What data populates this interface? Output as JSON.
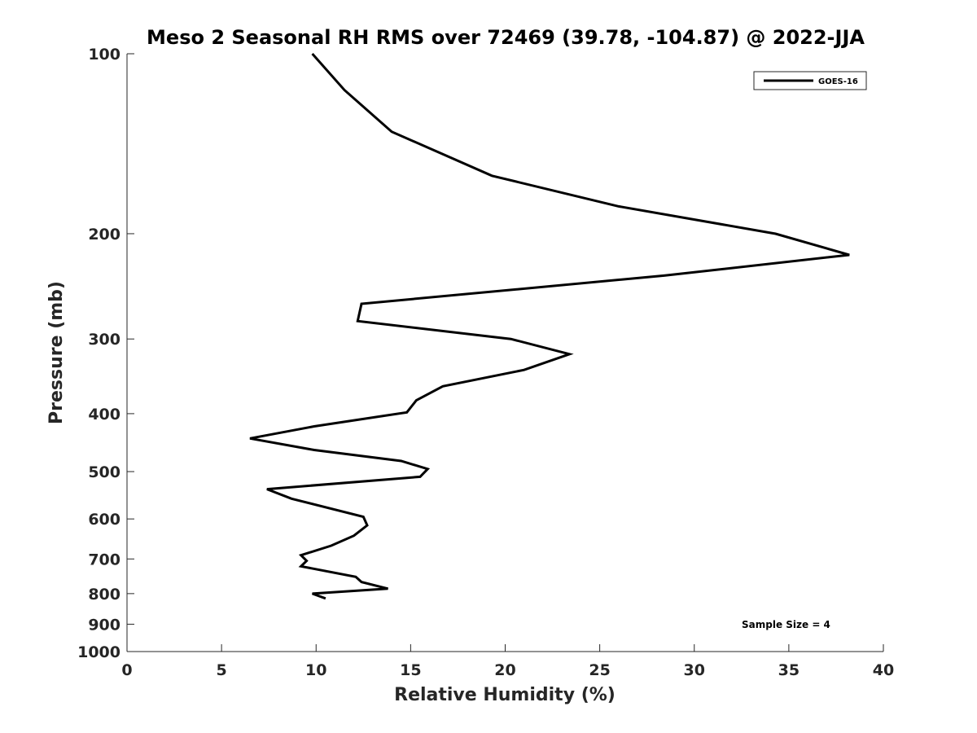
{
  "chart_data": {
    "type": "line",
    "title": "Meso 2 Seasonal RH RMS over 72469 (39.78, -104.87) @ 2022-JJA",
    "xlabel": "Relative Humidity (%)",
    "ylabel": "Pressure (mb)",
    "xlim": [
      0,
      40
    ],
    "ylim": [
      100,
      1000
    ],
    "yscale": "log",
    "y_reversed": true,
    "xticks": [
      0,
      5,
      10,
      15,
      20,
      25,
      30,
      35,
      40
    ],
    "yticks": [
      100,
      200,
      300,
      400,
      500,
      600,
      700,
      800,
      900,
      1000
    ],
    "grid": false,
    "legend_position": "top-right",
    "annotation": "Sample Size = 4",
    "series": [
      {
        "name": "GOES-16",
        "color": "#000000",
        "x": [
          9.8,
          11.5,
          14.0,
          19.3,
          26.0,
          34.3,
          38.2,
          28.4,
          12.4,
          12.2,
          20.3,
          23.4,
          21.0,
          16.7,
          15.3,
          14.8,
          9.9,
          6.5,
          9.9,
          14.5,
          15.9,
          15.5,
          7.4,
          8.7,
          12.5,
          12.7,
          12.0,
          10.8,
          9.2,
          9.5,
          9.2,
          12.1,
          12.4,
          13.8,
          9.8,
          10.5
        ],
        "y": [
          100,
          115,
          135,
          160,
          180,
          200,
          217,
          235,
          262,
          280,
          300,
          318,
          338,
          360,
          380,
          398,
          420,
          440,
          460,
          480,
          495,
          510,
          535,
          555,
          595,
          615,
          640,
          665,
          690,
          705,
          720,
          750,
          765,
          785,
          800,
          815
        ]
      }
    ]
  }
}
